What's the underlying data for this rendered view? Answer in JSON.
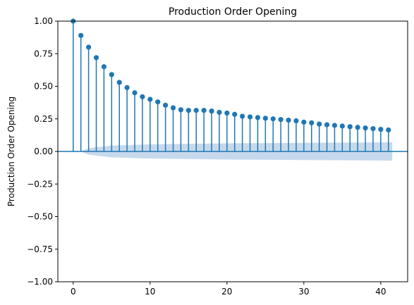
{
  "chart_data": {
    "type": "stem",
    "title": "Production Order Opening",
    "xlabel": "",
    "ylabel": "Production Order Opening",
    "xlim": [
      -2,
      43.5
    ],
    "ylim": [
      -1.0,
      1.0
    ],
    "x_ticks": [
      0,
      10,
      20,
      30,
      40
    ],
    "x_tick_labels": [
      "0",
      "10",
      "20",
      "30",
      "40"
    ],
    "y_ticks": [
      -1.0,
      -0.75,
      -0.5,
      -0.25,
      0.0,
      0.25,
      0.5,
      0.75,
      1.0
    ],
    "y_tick_labels": [
      "−1.00",
      "−0.75",
      "−0.50",
      "−0.25",
      "0.00",
      "0.25",
      "0.50",
      "0.75",
      "1.00"
    ],
    "grid": false,
    "lags": [
      0,
      1,
      2,
      3,
      4,
      5,
      6,
      7,
      8,
      9,
      10,
      11,
      12,
      13,
      14,
      15,
      16,
      17,
      18,
      19,
      20,
      21,
      22,
      23,
      24,
      25,
      26,
      27,
      28,
      29,
      30,
      31,
      32,
      33,
      34,
      35,
      36,
      37,
      38,
      39,
      40,
      41
    ],
    "values": [
      1.0,
      0.89,
      0.8,
      0.72,
      0.65,
      0.59,
      0.53,
      0.49,
      0.45,
      0.42,
      0.4,
      0.38,
      0.355,
      0.335,
      0.32,
      0.315,
      0.315,
      0.315,
      0.31,
      0.3,
      0.295,
      0.285,
      0.27,
      0.265,
      0.26,
      0.255,
      0.25,
      0.245,
      0.24,
      0.235,
      0.225,
      0.22,
      0.21,
      0.205,
      0.2,
      0.195,
      0.19,
      0.185,
      0.18,
      0.175,
      0.17,
      0.165
    ],
    "confidence_band": {
      "x": [
        1,
        2,
        5,
        10,
        20,
        30,
        41.5
      ],
      "upper": [
        0.0,
        0.025,
        0.045,
        0.055,
        0.062,
        0.066,
        0.07
      ],
      "lower": [
        0.0,
        -0.025,
        -0.045,
        -0.055,
        -0.062,
        -0.066,
        -0.07
      ]
    },
    "colors": {
      "stem": "#1f77b4",
      "band": "#c6d9ec",
      "zero_line": "#1f77b4"
    }
  }
}
